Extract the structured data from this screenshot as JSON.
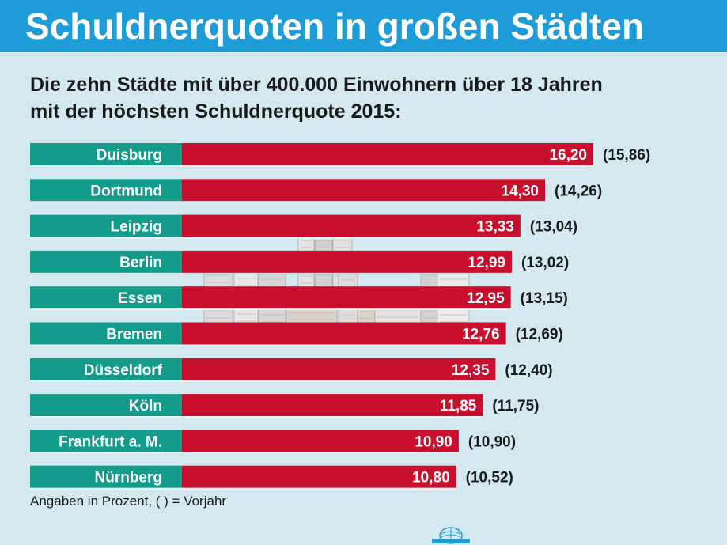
{
  "header": {
    "title": "Schuldnerquoten in großen Städten"
  },
  "subtitle": {
    "line1": "Die zehn Städte mit über 400.000 Einwohnern über 18 Jahren",
    "line2": "mit der höchsten Schuldnerquote 2015:"
  },
  "footnote": "Angaben in Prozent, ( ) = Vorjahr",
  "colors": {
    "header": "#1d9cd7",
    "background": "#d3e9ef",
    "label_band": "#139b8c",
    "bar": "#c8102e"
  },
  "chart_data": {
    "type": "bar",
    "orientation": "horizontal",
    "categories": [
      "Duisburg",
      "Dortmund",
      "Leipzig",
      "Berlin",
      "Essen",
      "Bremen",
      "Düsseldorf",
      "Köln",
      "Frankfurt a. M.",
      "Nürnberg"
    ],
    "series": [
      {
        "values": [
          16.2,
          14.3,
          13.33,
          12.99,
          12.95,
          12.76,
          12.35,
          11.85,
          10.9,
          10.8
        ]
      }
    ],
    "value_labels": [
      "16,20",
      "14,30",
      "13,33",
      "12,99",
      "12,95",
      "12,76",
      "12,35",
      "11,85",
      "10,90",
      "10,80"
    ],
    "previous_year_labels": [
      "(15,86)",
      "(14,26)",
      "(13,04)",
      "(13,02)",
      "(13,15)",
      "(12,69)",
      "(12,40)",
      "(11,75)",
      "(10,90)",
      "(10,52)"
    ],
    "legend": "none",
    "grid": false
  }
}
